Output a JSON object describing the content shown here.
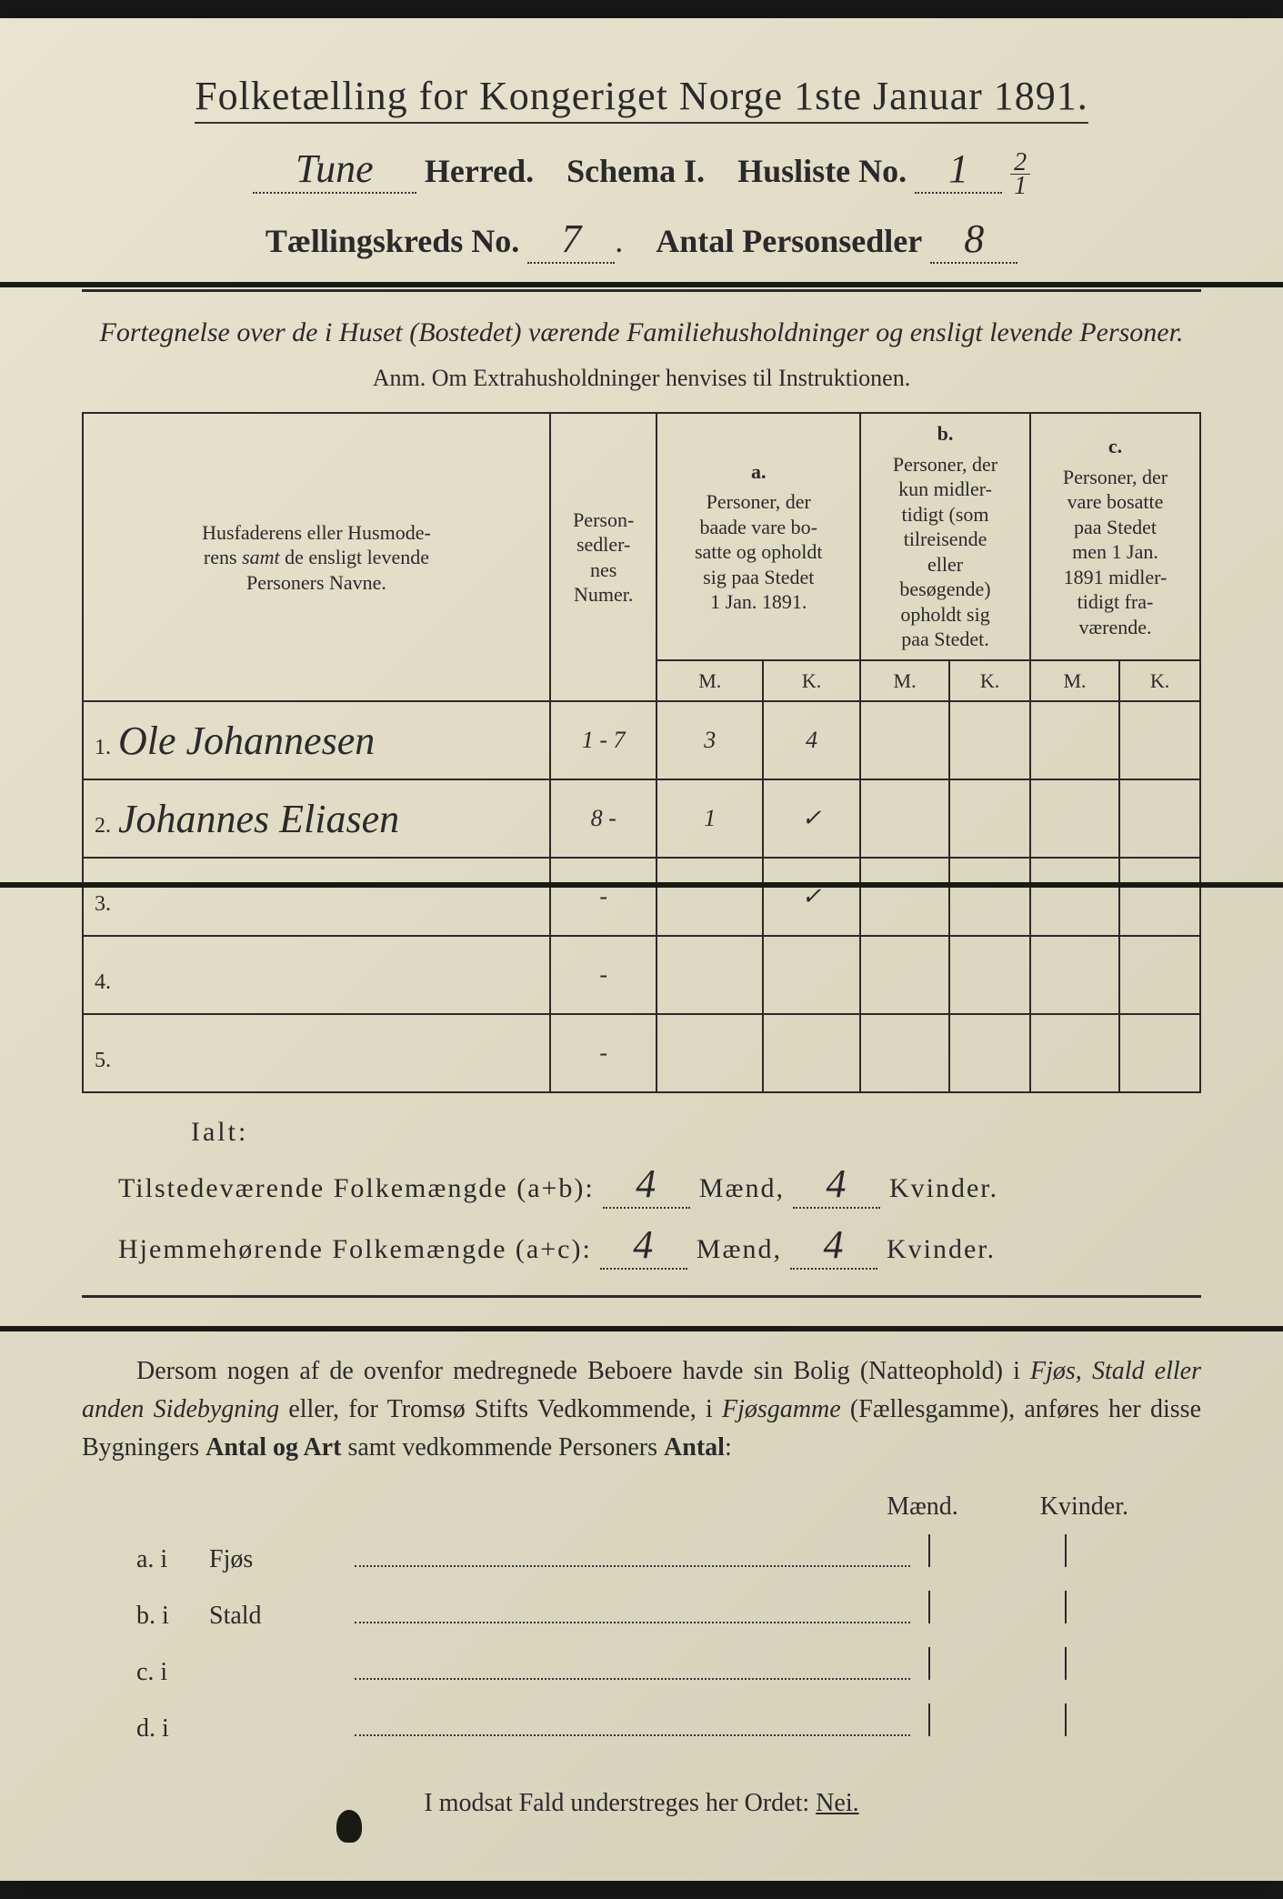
{
  "title": "Folketælling for Kongeriget Norge 1ste Januar 1891.",
  "header": {
    "herred_value": "Tune",
    "herred_label": "Herred.",
    "schema_label": "Schema I.",
    "husliste_label": "Husliste No.",
    "husliste_value": "1",
    "husliste_frac_top": "2",
    "husliste_frac_bot": "1",
    "kreds_label": "Tællingskreds No.",
    "kreds_value": "7",
    "antal_label": "Antal Personsedler",
    "antal_value": "8"
  },
  "subtitle": "Fortegnelse over de i Huset (Bostedet) værende Familiehusholdninger og ensligt levende Personer.",
  "anm": "Anm.  Om Extrahusholdninger henvises til Instruktionen.",
  "table": {
    "col_name": "Husfaderens eller Husmoderens samt de ensligt levende Personers Navne.",
    "col_numer": "Person-sedler-nes Numer.",
    "col_a_letter": "a.",
    "col_a": "Personer, der baade vare bosatte og opholdt sig paa Stedet 1 Jan. 1891.",
    "col_b_letter": "b.",
    "col_b": "Personer, der kun midlertidigt (som tilreisende eller besøgende) opholdt sig paa Stedet.",
    "col_c_letter": "c.",
    "col_c": "Personer, der vare bosatte paa Stedet men 1 Jan. 1891 midlertidigt fraværende.",
    "m": "M.",
    "k": "K.",
    "rows": [
      {
        "num": "1.",
        "name": "Ole Johannesen",
        "numer": "1 - 7",
        "am": "3",
        "ak": "4",
        "bm": "",
        "bk": "",
        "cm": "",
        "ck": ""
      },
      {
        "num": "2.",
        "name": "Johannes Eliasen",
        "numer": "8 -",
        "am": "1",
        "ak": "✓",
        "bm": "",
        "bk": "",
        "cm": "",
        "ck": ""
      },
      {
        "num": "3.",
        "name": "",
        "numer": "-",
        "am": "",
        "ak": "✓",
        "bm": "",
        "bk": "",
        "cm": "",
        "ck": ""
      },
      {
        "num": "4.",
        "name": "",
        "numer": "-",
        "am": "",
        "ak": "",
        "bm": "",
        "bk": "",
        "cm": "",
        "ck": ""
      },
      {
        "num": "5.",
        "name": "",
        "numer": "-",
        "am": "",
        "ak": "",
        "bm": "",
        "bk": "",
        "cm": "",
        "ck": ""
      }
    ]
  },
  "ialt": "Ialt:",
  "totals": {
    "line1_label": "Tilstedeværende Folkemængde (a+b):",
    "line1_m": "4",
    "line1_k": "4",
    "line2_label": "Hjemmehørende Folkemængde (a+c):",
    "line2_m": "4",
    "line2_k": "4",
    "maend": "Mænd,",
    "kvinder": "Kvinder."
  },
  "para": "Dersom nogen af de ovenfor medregnede Beboere havde sin Bolig (Natteophold) i Fjøs, Stald eller anden Sidebygning eller, for Tromsø Stifts Vedkommende, i Fjøsgamme (Fællesgamme), anføres her disse Bygningers Antal og Art samt vedkommende Personers Antal:",
  "mk": {
    "m": "Mænd.",
    "k": "Kvinder."
  },
  "subrows": [
    {
      "label": "a.  i",
      "name": "Fjøs"
    },
    {
      "label": "b.  i",
      "name": "Stald"
    },
    {
      "label": "c.  i",
      "name": ""
    },
    {
      "label": "d.  i",
      "name": ""
    }
  ],
  "footer": {
    "text": "I modsat Fald understreges her Ordet:",
    "nei": "Nei."
  }
}
